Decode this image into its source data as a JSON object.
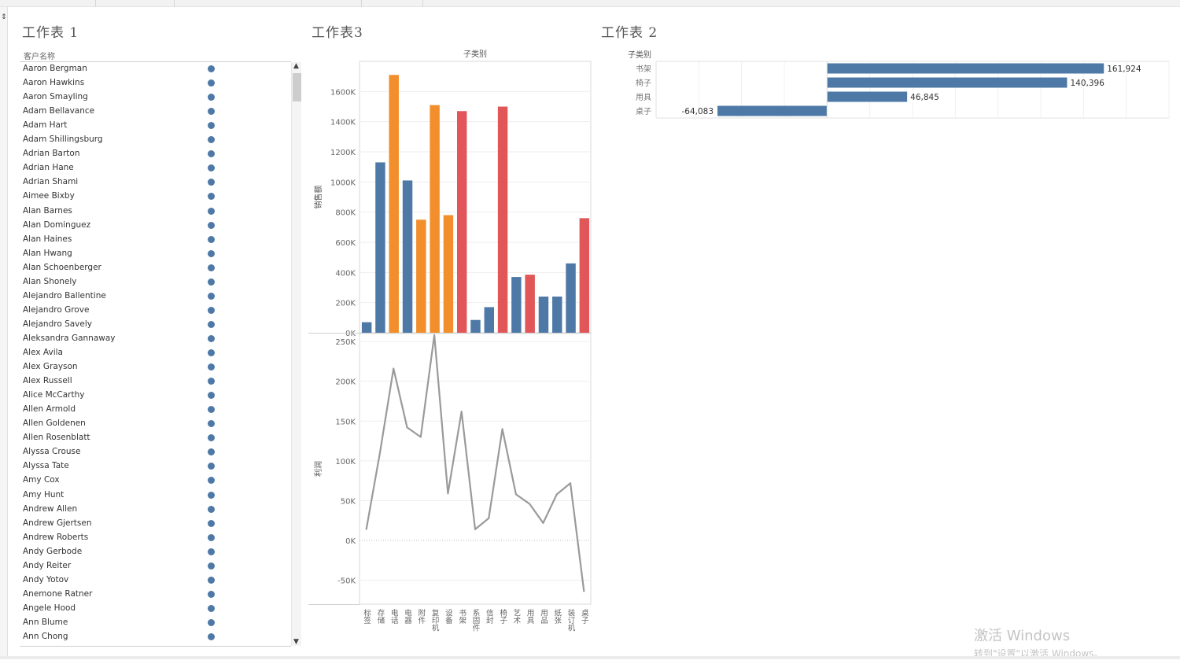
{
  "sheets": {
    "sheet1_title": "工作表 1",
    "sheet3_title": "工作表3",
    "sheet2_title": "工作表 2"
  },
  "customer_list": {
    "header": "客户名称",
    "mark_color": "#4e79a7",
    "names": [
      "Aaron Bergman",
      "Aaron Hawkins",
      "Aaron Smayling",
      "Adam Bellavance",
      "Adam Hart",
      "Adam Shillingsburg",
      "Adrian Barton",
      "Adrian Hane",
      "Adrian Shami",
      "Aimee Bixby",
      "Alan Barnes",
      "Alan Dominguez",
      "Alan Haines",
      "Alan Hwang",
      "Alan Schoenberger",
      "Alan Shonely",
      "Alejandro Ballentine",
      "Alejandro Grove",
      "Alejandro Savely",
      "Aleksandra Gannaway",
      "Alex Avila",
      "Alex Grayson",
      "Alex Russell",
      "Alice McCarthy",
      "Allen Armold",
      "Allen Goldenen",
      "Allen Rosenblatt",
      "Alyssa Crouse",
      "Alyssa Tate",
      "Amy Cox",
      "Amy Hunt",
      "Andrew Allen",
      "Andrew Gjertsen",
      "Andrew Roberts",
      "Andy Gerbode",
      "Andy Reiter",
      "Andy Yotov",
      "Anemone Ratner",
      "Angele Hood",
      "Ann Blume",
      "Ann Chong"
    ]
  },
  "chart_data": [
    {
      "type": "bar",
      "title": "",
      "column_header": "子类别",
      "ylabel": "销售额",
      "ylim": [
        0,
        1800000
      ],
      "yticks": [
        0,
        200000,
        400000,
        600000,
        800000,
        1000000,
        1200000,
        1400000,
        1600000
      ],
      "ytick_labels": [
        "0K",
        "200K",
        "400K",
        "600K",
        "800K",
        "1000K",
        "1200K",
        "1400K",
        "1600K"
      ],
      "categories": [
        "标签",
        "存储",
        "电话",
        "电器",
        "附件",
        "复印机",
        "设备",
        "书架",
        "系固件",
        "信封",
        "椅子",
        "艺术",
        "用具",
        "用品",
        "纸张",
        "装订机",
        "桌子"
      ],
      "values": [
        70000,
        1130000,
        1710000,
        1010000,
        750000,
        1510000,
        780000,
        1470000,
        85000,
        170000,
        1500000,
        370000,
        385000,
        240000,
        240000,
        460000,
        760000
      ],
      "colors": [
        "#4e79a7",
        "#4e79a7",
        "#f28e2b",
        "#4e79a7",
        "#f28e2b",
        "#f28e2b",
        "#f28e2b",
        "#e15759",
        "#4e79a7",
        "#4e79a7",
        "#e15759",
        "#4e79a7",
        "#e15759",
        "#4e79a7",
        "#4e79a7",
        "#4e79a7",
        "#e15759"
      ]
    },
    {
      "type": "line",
      "title": "",
      "ylabel": "利润",
      "ylim": [
        -80000,
        260000
      ],
      "yticks": [
        -50000,
        0,
        50000,
        100000,
        150000,
        200000,
        250000
      ],
      "ytick_labels": [
        "-50K",
        "0K",
        "50K",
        "100K",
        "150K",
        "200K",
        "250K"
      ],
      "categories": [
        "标签",
        "存储",
        "电话",
        "电器",
        "附件",
        "复印机",
        "设备",
        "书架",
        "系固件",
        "信封",
        "椅子",
        "艺术",
        "用具",
        "用品",
        "纸张",
        "装订机",
        "桌子"
      ],
      "values": [
        14000,
        110000,
        216000,
        142000,
        130000,
        258000,
        59000,
        162000,
        14000,
        28000,
        140000,
        58000,
        46000,
        22000,
        58000,
        72000,
        -64000
      ],
      "line_color": "#9a9a9a"
    },
    {
      "type": "bar",
      "orientation": "horizontal",
      "title": "",
      "row_header": "子类别",
      "categories": [
        "书架",
        "椅子",
        "用具",
        "桌子"
      ],
      "values": [
        161924,
        140396,
        46845,
        -64083
      ],
      "value_labels": [
        "161,924",
        "140,396",
        "46,845",
        "-64,083"
      ],
      "xlim": [
        -100000,
        200000
      ],
      "bar_color": "#4e79a7"
    }
  ],
  "watermark": {
    "line1": "激活 Windows",
    "line2": "转到\"设置\"以激活 Windows。"
  }
}
